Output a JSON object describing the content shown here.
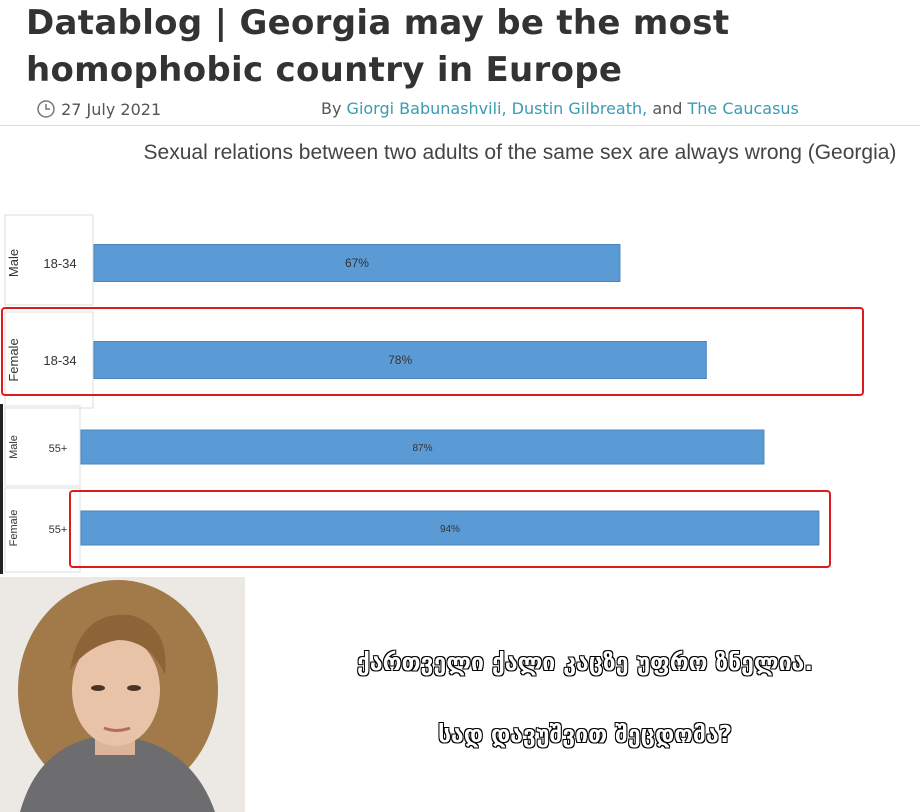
{
  "header": {
    "title": "Datablog | Georgia may be the most homophobic country in Europe",
    "date": "27 July 2021",
    "byline": [
      "By",
      "Giorgi Babunashvili,",
      "Dustin Gilbreath,",
      "and",
      "The Caucasus"
    ]
  },
  "chart_data": {
    "type": "bar",
    "orientation": "horizontal",
    "title": "Sexual relations between two adults of the same sex are always wrong (Georgia)",
    "groups": [
      "Male",
      "Female",
      "Male",
      "Female"
    ],
    "categories": [
      "18-34",
      "18-34",
      "55+",
      "55+"
    ],
    "values": [
      67,
      78,
      87,
      94
    ],
    "value_labels": [
      "67%",
      "78%",
      "87%",
      "94%"
    ],
    "color": "#5b9bd5"
  },
  "caption": [
    "ქართველი ქალი კაცზე უფრო ზნელია.",
    "სად დავუშვით შეცდომა?"
  ]
}
